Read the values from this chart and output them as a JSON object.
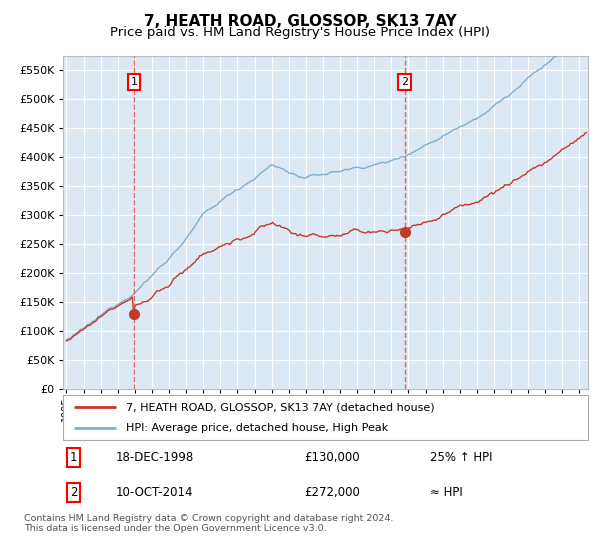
{
  "title": "7, HEATH ROAD, GLOSSOP, SK13 7AY",
  "subtitle": "Price paid vs. HM Land Registry's House Price Index (HPI)",
  "ylim": [
    0,
    575000
  ],
  "yticks": [
    0,
    50000,
    100000,
    150000,
    200000,
    250000,
    300000,
    350000,
    400000,
    450000,
    500000,
    550000
  ],
  "background_color": "#ffffff",
  "plot_bg_color": "#dce9f5",
  "grid_color": "#ffffff",
  "hpi_line_color": "#7bafd4",
  "price_line_color": "#c0392b",
  "sale1_date": "18-DEC-1998",
  "sale1_price": 130000,
  "sale1_label": "25% ↑ HPI",
  "sale1_x": 1998.96,
  "sale2_date": "10-OCT-2014",
  "sale2_price": 272000,
  "sale2_label": "≈ HPI",
  "sale2_x": 2014.78,
  "marker_color": "#c0392b",
  "vline_color": "#e74c3c",
  "legend_label1": "7, HEATH ROAD, GLOSSOP, SK13 7AY (detached house)",
  "legend_label2": "HPI: Average price, detached house, High Peak",
  "footnote": "Contains HM Land Registry data © Crown copyright and database right 2024.\nThis data is licensed under the Open Government Licence v3.0.",
  "title_fontsize": 11,
  "subtitle_fontsize": 9.5,
  "xstart": 1995.0,
  "xend": 2025.5,
  "xlim": [
    1994.8,
    2025.5
  ]
}
